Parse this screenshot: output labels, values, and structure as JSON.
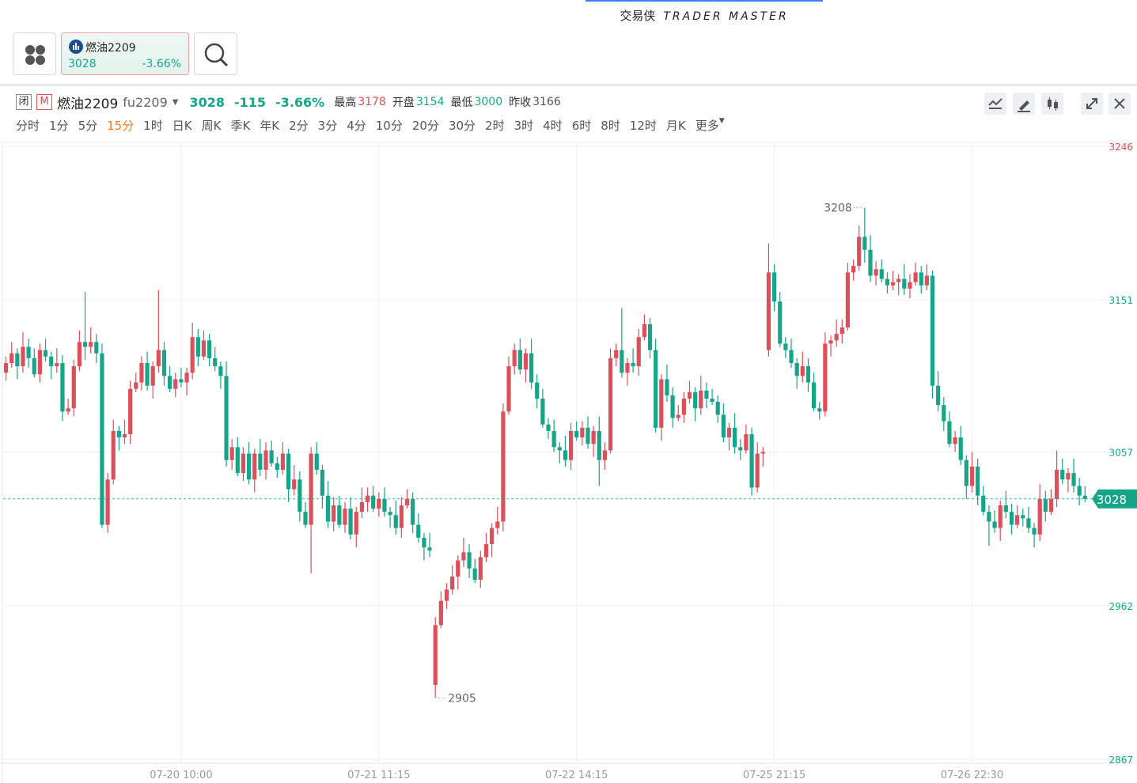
{
  "brand": {
    "name": "交易侠",
    "slogan": "TRADER MASTER"
  },
  "quote": {
    "badges": [
      "闭",
      "M"
    ],
    "name": "燃油2209",
    "code": "fu2209",
    "price": 3028,
    "change": -115,
    "change_pct": "-3.66%",
    "fields": [
      {
        "label": "最高",
        "value": 3178
      },
      {
        "label": "开盘",
        "value": 3154
      },
      {
        "label": "最低",
        "value": 3000
      },
      {
        "label": "昨收",
        "value": 3166
      }
    ]
  },
  "timeframes": [
    "分时",
    "1分",
    "5分",
    "15分",
    "1时",
    "日K",
    "周K",
    "季K",
    "年K",
    "2分",
    "3分",
    "4分",
    "10分",
    "20分",
    "30分",
    "2时",
    "3时",
    "4时",
    "6时",
    "8时",
    "12时",
    "月K",
    "更多"
  ],
  "active_timeframe": 3,
  "chart_data": {
    "type": "candlestick",
    "up_color": "#dd4f5a",
    "down_color": "#17a589",
    "grid": true,
    "ylim": [
      2864.6,
      3248.4
    ],
    "yticks": [
      2867,
      2962,
      3057,
      3151,
      3246
    ],
    "categories": [
      null,
      null,
      null,
      null,
      null,
      null,
      null,
      null,
      null,
      null,
      null,
      null,
      null,
      null,
      null,
      null,
      null,
      null,
      null,
      null,
      null,
      null,
      null,
      null,
      null,
      null,
      null,
      null,
      null,
      null,
      null,
      "07-20 10:00",
      null,
      null,
      null,
      null,
      null,
      null,
      null,
      null,
      null,
      null,
      null,
      null,
      null,
      null,
      null,
      null,
      null,
      null,
      null,
      null,
      null,
      null,
      null,
      null,
      null,
      null,
      null,
      null,
      null,
      null,
      null,
      null,
      null,
      null,
      "07-21 11:15",
      null,
      null,
      null,
      null,
      null,
      null,
      null,
      null,
      null,
      null,
      null,
      null,
      null,
      null,
      null,
      null,
      null,
      null,
      null,
      null,
      null,
      null,
      null,
      null,
      null,
      null,
      null,
      null,
      null,
      null,
      null,
      null,
      null,
      null,
      "07-22 14:15",
      null,
      null,
      null,
      null,
      null,
      null,
      null,
      null,
      null,
      null,
      null,
      null,
      null,
      null,
      null,
      null,
      null,
      null,
      null,
      null,
      null,
      null,
      null,
      null,
      null,
      null,
      null,
      null,
      null,
      null,
      null,
      null,
      null,
      null,
      "07-25 21:15",
      null,
      null,
      null,
      null,
      null,
      null,
      null,
      null,
      null,
      null,
      null,
      null,
      null,
      null,
      null,
      null,
      null,
      null,
      null,
      null,
      null,
      null,
      null,
      null,
      null,
      null,
      null,
      null,
      null,
      null,
      null,
      null,
      null,
      null,
      "07-26 22:30",
      null,
      null,
      null,
      null,
      null,
      null,
      null,
      null,
      null,
      null,
      null,
      null,
      null,
      null,
      null,
      null,
      null,
      null,
      null,
      null
    ],
    "open": [
      3106,
      3112,
      3118,
      3110,
      3122,
      3115,
      3105,
      3120,
      3116,
      3110,
      3112,
      3082,
      3084,
      3110,
      3125,
      3122,
      3125,
      3118,
      3012,
      3040,
      3070,
      3066,
      3068,
      3096,
      3100,
      3112,
      3098,
      3110,
      3120,
      3104,
      3096,
      3102,
      3100,
      3106,
      3128,
      3116,
      3126,
      3115,
      3110,
      3104,
      3052,
      3060,
      3044,
      3056,
      3040,
      3056,
      3046,
      3058,
      3050,
      3046,
      3056,
      3034,
      3040,
      3020,
      3012,
      3056,
      3046,
      3030,
      3014,
      3024,
      3012,
      3022,
      3006,
      3020,
      3026,
      3030,
      3022,
      3028,
      3020,
      3018,
      3010,
      3024,
      3028,
      3012,
      3004,
      2998,
      2913,
      2950,
      2965,
      2972,
      2980,
      2990,
      2995,
      2985,
      2978,
      2992,
      3000,
      3010,
      3014,
      3082,
      3110,
      3120,
      3108,
      3118,
      3100,
      3090,
      3074,
      3070,
      3060,
      3058,
      3052,
      3070,
      3066,
      3072,
      3062,
      3070,
      3052,
      3058,
      3115,
      3120,
      3106,
      3112,
      3110,
      3128,
      3136,
      3120,
      3072,
      3102,
      3092,
      3078,
      3080,
      3090,
      3094,
      3084,
      3095,
      3090,
      3088,
      3080,
      3066,
      3072,
      3060,
      3058,
      3068,
      3035,
      3056,
      3120,
      3168,
      3150,
      3124,
      3120,
      3112,
      3104,
      3110,
      3100,
      3084,
      3082,
      3124,
      3126,
      3130,
      3134,
      3168,
      3172,
      3190,
      3182,
      3166,
      3170,
      3164,
      3160,
      3162,
      3164,
      3158,
      3162,
      3168,
      3160,
      3166,
      3098,
      3086,
      3076,
      3062,
      3066,
      3052,
      3036,
      3048,
      3030,
      3020,
      3014,
      3010,
      3024,
      3020,
      3012,
      3018,
      3016,
      3010,
      3006,
      3028,
      3020,
      3028,
      3046,
      3040,
      3044,
      3036,
      3030
    ],
    "high": [
      3116,
      3125,
      3121,
      3131,
      3127,
      3121,
      3124,
      3127,
      3119,
      3121,
      3117,
      3090,
      3114,
      3132,
      3156,
      3134,
      3130,
      3124,
      3044,
      3077,
      3073,
      3077,
      3101,
      3106,
      3116,
      3119,
      3113,
      3157,
      3125,
      3110,
      3106,
      3109,
      3109,
      3137,
      3133,
      3132,
      3130,
      3122,
      3113,
      3113,
      3065,
      3066,
      3060,
      3063,
      3059,
      3065,
      3063,
      3064,
      3054,
      3063,
      3059,
      3049,
      3045,
      3026,
      3060,
      3063,
      3049,
      3039,
      3029,
      3030,
      3026,
      3029,
      3023,
      3035,
      3035,
      3036,
      3032,
      3035,
      3023,
      3027,
      3029,
      3034,
      3032,
      3019,
      3007,
      3007,
      2955,
      2971,
      2976,
      2987,
      2993,
      3004,
      3000,
      2991,
      2996,
      3007,
      3013,
      3023,
      3087,
      3116,
      3124,
      3127,
      3121,
      3127,
      3105,
      3096,
      3078,
      3077,
      3063,
      3067,
      3075,
      3076,
      3076,
      3079,
      3073,
      3079,
      3063,
      3121,
      3124,
      3146,
      3115,
      3121,
      3133,
      3142,
      3140,
      3127,
      3105,
      3111,
      3097,
      3086,
      3094,
      3101,
      3097,
      3104,
      3100,
      3096,
      3092,
      3087,
      3075,
      3081,
      3065,
      3074,
      3072,
      3063,
      3060,
      3186,
      3173,
      3156,
      3128,
      3127,
      3115,
      3119,
      3115,
      3106,
      3088,
      3131,
      3129,
      3139,
      3139,
      3174,
      3176,
      3197,
      3208,
      3191,
      3175,
      3176,
      3168,
      3169,
      3167,
      3173,
      3167,
      3174,
      3172,
      3173,
      3169,
      3107,
      3091,
      3082,
      3070,
      3073,
      3055,
      3057,
      3053,
      3036,
      3024,
      3021,
      3027,
      3033,
      3025,
      3024,
      3022,
      3023,
      3013,
      3037,
      3033,
      3034,
      3058,
      3053,
      3047,
      3053,
      3041,
      3036
    ],
    "low": [
      3101,
      3109,
      3102,
      3106,
      3109,
      3103,
      3100,
      3113,
      3102,
      3106,
      3076,
      3080,
      3079,
      3107,
      3114,
      3118,
      3112,
      3010,
      3007,
      3037,
      3058,
      3062,
      3062,
      3094,
      3095,
      3095,
      3090,
      3106,
      3098,
      3094,
      3091,
      3097,
      3092,
      3102,
      3110,
      3114,
      3110,
      3107,
      3096,
      3048,
      3046,
      3042,
      3039,
      3037,
      3032,
      3042,
      3040,
      3048,
      3041,
      3043,
      3026,
      3030,
      3014,
      3010,
      2982,
      3043,
      3022,
      3010,
      3008,
      3010,
      3007,
      3003,
      2998,
      3016,
      3020,
      3020,
      3017,
      3017,
      3010,
      3006,
      3004,
      3022,
      3007,
      3001,
      2990,
      2992,
      2905,
      2948,
      2960,
      2969,
      2972,
      2986,
      2979,
      2976,
      2973,
      2989,
      2992,
      3006,
      3008,
      3080,
      3105,
      3105,
      3100,
      3096,
      3084,
      3072,
      3065,
      3057,
      3050,
      3048,
      3046,
      3064,
      3061,
      3059,
      3054,
      3036,
      3046,
      3056,
      3110,
      3103,
      3098,
      3106,
      3104,
      3126,
      3115,
      3069,
      3064,
      3088,
      3072,
      3076,
      3075,
      3087,
      3076,
      3080,
      3084,
      3086,
      3075,
      3063,
      3058,
      3056,
      3052,
      3056,
      3030,
      3032,
      3048,
      3116,
      3144,
      3122,
      3115,
      3109,
      3096,
      3100,
      3094,
      3082,
      3077,
      3079,
      3116,
      3122,
      3124,
      3132,
      3163,
      3169,
      3174,
      3162,
      3160,
      3162,
      3155,
      3157,
      3154,
      3154,
      3152,
      3160,
      3155,
      3157,
      3090,
      3082,
      3070,
      3060,
      3057,
      3049,
      3028,
      3032,
      3024,
      3018,
      2999,
      3007,
      3002,
      3016,
      3006,
      3010,
      3011,
      3007,
      2998,
      3002,
      3014,
      3018,
      3023,
      3037,
      3032,
      3032,
      3024,
      3026
    ],
    "close": [
      3112,
      3118,
      3110,
      3122,
      3115,
      3105,
      3120,
      3116,
      3110,
      3112,
      3082,
      3084,
      3110,
      3125,
      3122,
      3125,
      3118,
      3012,
      3040,
      3070,
      3066,
      3068,
      3096,
      3100,
      3112,
      3098,
      3110,
      3120,
      3104,
      3096,
      3102,
      3100,
      3106,
      3128,
      3116,
      3126,
      3115,
      3110,
      3104,
      3052,
      3060,
      3044,
      3056,
      3040,
      3056,
      3046,
      3058,
      3050,
      3046,
      3056,
      3034,
      3040,
      3020,
      3012,
      3056,
      3046,
      3030,
      3014,
      3024,
      3012,
      3022,
      3006,
      3020,
      3026,
      3030,
      3022,
      3028,
      3020,
      3018,
      3010,
      3024,
      3028,
      3012,
      3004,
      2998,
      2996,
      2950,
      2965,
      2972,
      2980,
      2990,
      2995,
      2985,
      2978,
      2992,
      3000,
      3010,
      3014,
      3082,
      3110,
      3120,
      3108,
      3118,
      3100,
      3090,
      3074,
      3070,
      3060,
      3058,
      3052,
      3070,
      3066,
      3072,
      3062,
      3070,
      3052,
      3058,
      3115,
      3120,
      3106,
      3112,
      3110,
      3128,
      3136,
      3120,
      3072,
      3102,
      3092,
      3078,
      3080,
      3090,
      3094,
      3084,
      3095,
      3090,
      3088,
      3080,
      3066,
      3072,
      3060,
      3058,
      3068,
      3035,
      3056,
      3057,
      3168,
      3150,
      3124,
      3120,
      3112,
      3104,
      3110,
      3100,
      3084,
      3082,
      3124,
      3126,
      3130,
      3134,
      3168,
      3172,
      3190,
      3182,
      3166,
      3170,
      3164,
      3160,
      3162,
      3164,
      3158,
      3162,
      3168,
      3160,
      3166,
      3098,
      3086,
      3076,
      3062,
      3066,
      3052,
      3036,
      3048,
      3030,
      3020,
      3014,
      3010,
      3024,
      3020,
      3012,
      3018,
      3016,
      3010,
      3006,
      3028,
      3020,
      3028,
      3046,
      3040,
      3044,
      3036,
      3030,
      3028
    ]
  }
}
